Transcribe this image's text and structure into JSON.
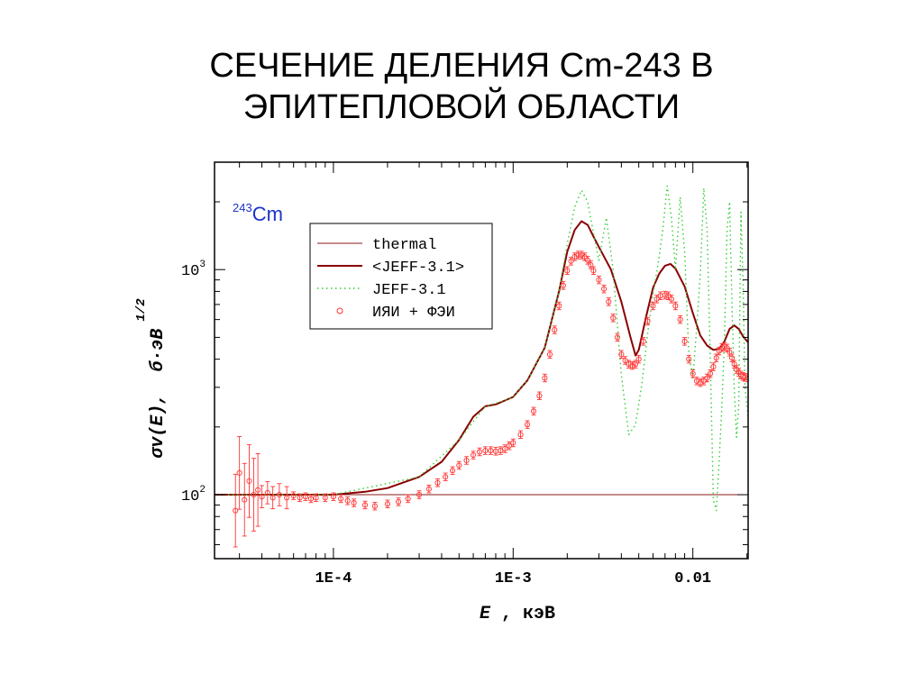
{
  "slide": {
    "title_line1": "СЕЧЕНИЕ ДЕЛЕНИЯ Cm-243 В",
    "title_line2": "ЭПИТЕПЛОВОЙ ОБЛАСТИ"
  },
  "chart_data": {
    "type": "line",
    "title": "",
    "annotation": {
      "mass_number": "243",
      "element": "Cm"
    },
    "xlabel": {
      "var": "E",
      "rest": " , кэВ"
    },
    "ylabel": {
      "main": "σv(E),  б·эВ",
      "exp": "1/2"
    },
    "x_scale": "log",
    "y_scale": "log",
    "xlim": [
      2.18e-05,
      0.0203
    ],
    "ylim": [
      52,
      3000
    ],
    "x_ticks": [
      {
        "value": 0.0001,
        "label": "1E-4"
      },
      {
        "value": 0.001,
        "label": "1E-3"
      },
      {
        "value": 0.01,
        "label": "0.01"
      }
    ],
    "y_ticks": [
      {
        "value": 100,
        "base": "10",
        "exp": "2"
      },
      {
        "value": 1000,
        "base": "10",
        "exp": "3"
      }
    ],
    "grid": false,
    "legend": {
      "position": "top-center",
      "entries": [
        {
          "label": "thermal",
          "style": "thin-line",
          "color": "#8b1a1a"
        },
        {
          "label": "<JEFF-3.1>",
          "style": "thick-line",
          "color": "#8b0000"
        },
        {
          "label": "JEFF-3.1",
          "style": "dotted",
          "color": "#33cc33"
        },
        {
          "label": "ИЯИ + ФЭИ",
          "style": "circle-marker",
          "color": "#ff3333"
        }
      ]
    },
    "series": [
      {
        "name": "thermal",
        "color": "#8b1a1a",
        "style": "thin-line",
        "x": [
          2.18e-05,
          0.0203
        ],
        "y": [
          100,
          100
        ]
      },
      {
        "name": "<JEFF-3.1>",
        "color": "#8b0000",
        "style": "thick-line",
        "x": [
          2.18e-05,
          5e-05,
          0.0001,
          0.00015,
          0.0002,
          0.0003,
          0.0004,
          0.0005,
          0.0006,
          0.0007,
          0.0008,
          0.0009,
          0.001,
          0.0012,
          0.0015,
          0.0018,
          0.002,
          0.0022,
          0.0024,
          0.0026,
          0.0028,
          0.003,
          0.0035,
          0.004,
          0.0045,
          0.0048,
          0.005,
          0.0055,
          0.006,
          0.0065,
          0.007,
          0.0075,
          0.008,
          0.009,
          0.01,
          0.011,
          0.012,
          0.013,
          0.014,
          0.015,
          0.016,
          0.017,
          0.018,
          0.019,
          0.0203
        ],
        "y": [
          100,
          100,
          100,
          103,
          107,
          120,
          140,
          175,
          222,
          247,
          252,
          262,
          272,
          322,
          450,
          800,
          1200,
          1500,
          1640,
          1580,
          1400,
          1260,
          1000,
          720,
          500,
          415,
          440,
          620,
          830,
          960,
          1040,
          1060,
          1010,
          840,
          640,
          510,
          460,
          440,
          445,
          480,
          545,
          565,
          545,
          505,
          475
        ]
      },
      {
        "name": "JEFF-3.1",
        "color": "#33cc33",
        "style": "dotted",
        "x": [
          2.18e-05,
          0.0001,
          0.0003,
          0.0005,
          0.0007,
          0.0009,
          0.001,
          0.0012,
          0.0015,
          0.0018,
          0.002,
          0.0022,
          0.0024,
          0.0026,
          0.0028,
          0.003,
          0.0033,
          0.0036,
          0.004,
          0.0044,
          0.0048,
          0.0052,
          0.0056,
          0.006,
          0.0064,
          0.0068,
          0.0072,
          0.0076,
          0.008,
          0.0085,
          0.009,
          0.0095,
          0.01,
          0.0105,
          0.011,
          0.0115,
          0.012,
          0.0125,
          0.013,
          0.0135,
          0.014,
          0.0145,
          0.015,
          0.0155,
          0.016,
          0.0165,
          0.017,
          0.0175,
          0.018,
          0.0185,
          0.019,
          0.0195,
          0.0203
        ],
        "y": [
          100,
          100,
          120,
          175,
          247,
          262,
          272,
          322,
          450,
          800,
          1300,
          1900,
          2250,
          2000,
          1450,
          1100,
          1700,
          1000,
          340,
          185,
          205,
          310,
          520,
          780,
          1050,
          1500,
          2350,
          1700,
          1000,
          2100,
          1200,
          420,
          330,
          550,
          950,
          2300,
          1500,
          400,
          95,
          85,
          140,
          250,
          500,
          1500,
          2000,
          700,
          300,
          180,
          250,
          1800,
          900,
          300,
          220
        ]
      },
      {
        "name": "ИЯИ + ФЭИ",
        "color": "#ff3333",
        "style": "circle-marker",
        "x": [
          2.85e-05,
          3e-05,
          3.2e-05,
          3.4e-05,
          3.6e-05,
          3.8e-05,
          4e-05,
          4.3e-05,
          4.6e-05,
          5e-05,
          5.5e-05,
          6e-05,
          6.5e-05,
          7e-05,
          7.5e-05,
          8e-05,
          9e-05,
          0.0001,
          0.00011,
          0.00012,
          0.00013,
          0.00015,
          0.00017,
          0.0002,
          0.00023,
          0.00026,
          0.0003,
          0.00034,
          0.00038,
          0.00042,
          0.00046,
          0.0005,
          0.00055,
          0.0006,
          0.00065,
          0.0007,
          0.00075,
          0.0008,
          0.00085,
          0.0009,
          0.00095,
          0.001,
          0.0011,
          0.0012,
          0.0013,
          0.0014,
          0.0015,
          0.0016,
          0.0017,
          0.0018,
          0.0019,
          0.002,
          0.0021,
          0.0022,
          0.0023,
          0.0024,
          0.0025,
          0.0026,
          0.0027,
          0.0028,
          0.003,
          0.0032,
          0.0034,
          0.0036,
          0.0038,
          0.004,
          0.0042,
          0.0044,
          0.0046,
          0.0048,
          0.005,
          0.0053,
          0.0056,
          0.006,
          0.0063,
          0.0066,
          0.007,
          0.0073,
          0.0076,
          0.008,
          0.0085,
          0.009,
          0.0095,
          0.01,
          0.0105,
          0.011,
          0.0115,
          0.012,
          0.0125,
          0.013,
          0.0135,
          0.014,
          0.0145,
          0.015,
          0.0155,
          0.016,
          0.0165,
          0.017,
          0.0175,
          0.018,
          0.0185,
          0.019,
          0.0195,
          0.0203
        ],
        "y": [
          85,
          125,
          95,
          115,
          100,
          105,
          98,
          102,
          97,
          100,
          97,
          99,
          97,
          98,
          96,
          97,
          97,
          98,
          96,
          94,
          92,
          90,
          89,
          91,
          93,
          96,
          100,
          106,
          113,
          120,
          128,
          135,
          142,
          150,
          155,
          157,
          157,
          156,
          157,
          160,
          165,
          170,
          185,
          205,
          235,
          275,
          330,
          420,
          540,
          690,
          850,
          990,
          1090,
          1140,
          1160,
          1160,
          1140,
          1100,
          1050,
          990,
          900,
          820,
          720,
          610,
          500,
          420,
          395,
          380,
          375,
          380,
          400,
          480,
          590,
          690,
          740,
          765,
          770,
          765,
          740,
          690,
          600,
          480,
          400,
          345,
          320,
          315,
          320,
          330,
          345,
          370,
          405,
          435,
          450,
          455,
          448,
          430,
          405,
          380,
          360,
          350,
          340,
          335,
          332,
          330
        ]
      }
    ]
  }
}
